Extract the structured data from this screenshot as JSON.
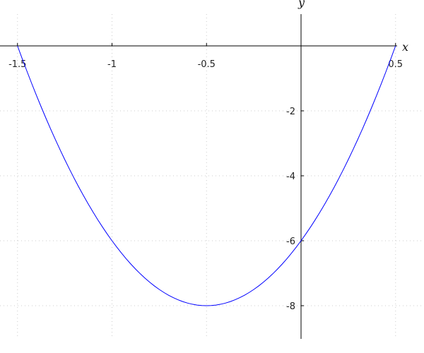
{
  "chart_data": {
    "type": "line",
    "title": "",
    "xlabel": "x",
    "ylabel": "y",
    "xlim": [
      -1.5,
      0.5
    ],
    "ylim": [
      -9,
      1.4
    ],
    "grid": true,
    "x_ticks": [
      -1.5,
      -1,
      -0.5,
      0.5
    ],
    "x_tick_labels": [
      "-1.5",
      "-1",
      "-0.5",
      "0.5"
    ],
    "y_ticks": [
      -2,
      -4,
      -6,
      -8
    ],
    "y_tick_labels": [
      "-2",
      "-4",
      "-6",
      "-8"
    ],
    "series": [
      {
        "color": "#0000ff",
        "x": [
          -1.5,
          -1.25,
          -1,
          -0.75,
          -0.5,
          -0.25,
          0,
          0.25,
          0.5
        ],
        "y": [
          0,
          -3.5,
          -6,
          -7.5,
          -8,
          -7.5,
          -6,
          -3.5,
          0
        ]
      }
    ]
  }
}
